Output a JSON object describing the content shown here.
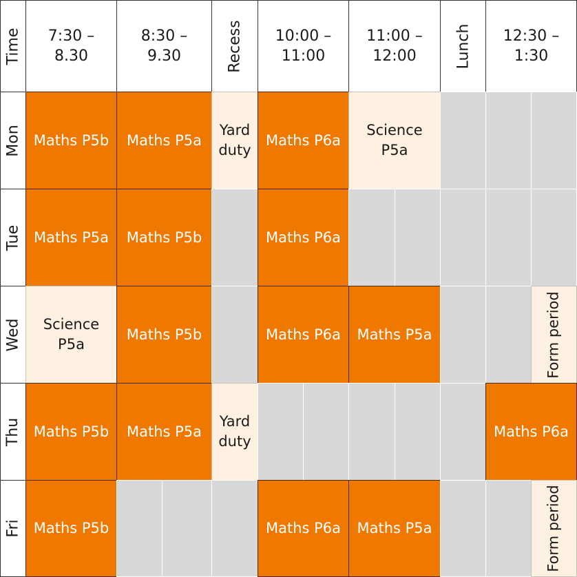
{
  "header": {
    "corner": "Time",
    "periods": [
      "7:30 –\n8.30",
      "8:30 –\n9.30",
      "Recess",
      "10:00 –\n11:00",
      "11:00 –\n12:00",
      "Lunch",
      "12:30 –\n1:30"
    ]
  },
  "days": [
    "Mon",
    "Tue",
    "Wed",
    "Thu",
    "Fri"
  ],
  "colors": {
    "class": "#ef7800",
    "duty": "#fef1e2",
    "free": "#d8d8d8"
  },
  "schedule": {
    "mon": {
      "p1": "Maths P5b",
      "p2": "Maths P5a",
      "recess": "Yard\nduty",
      "p3": "Maths P6a",
      "p4": "Science\nP5a"
    },
    "tue": {
      "p1": "Maths P5a",
      "p2": "Maths P5b",
      "p3": "Maths P6a"
    },
    "wed": {
      "p1": "Science\nP5a",
      "p2": "Maths P5b",
      "p3": "Maths P6a",
      "p4": "Maths P5a",
      "form": "Form period"
    },
    "thu": {
      "p1": "Maths P5b",
      "p2": "Maths P5a",
      "recess": "Yard\nduty",
      "p5": "Maths P6a"
    },
    "fri": {
      "p1": "Maths P5b",
      "p3": "Maths P6a",
      "p4": "Maths P5a",
      "form": "Form period"
    }
  }
}
